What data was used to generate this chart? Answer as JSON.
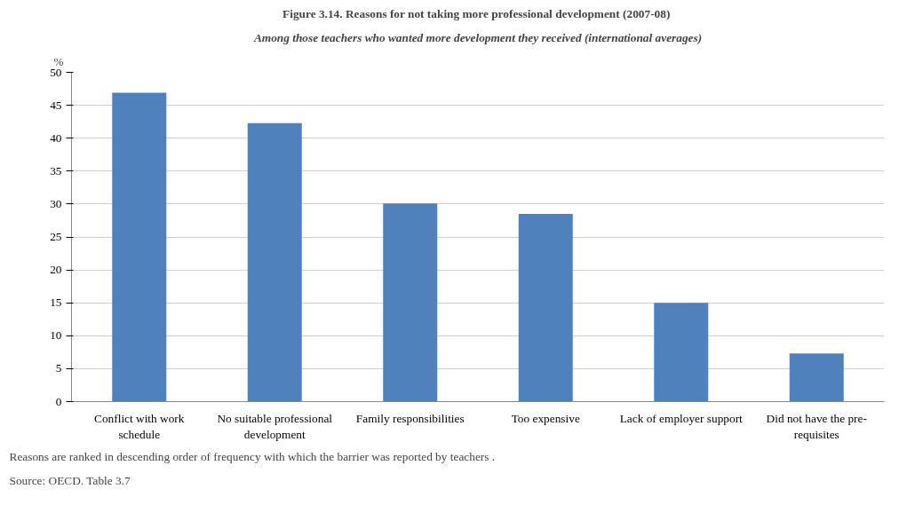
{
  "chart_data": {
    "type": "bar",
    "title": "Figure 3.14. Reasons for not taking more professional development  (2007-08)",
    "subtitle": "Among those teachers who wanted more development they received (international averages)",
    "ylabel": "%",
    "categories": [
      "Conflict with work schedule",
      "No suitable professional development",
      "Family responsibilities",
      "Too expensive",
      "Lack of employer support",
      "Did not have the pre-requisites"
    ],
    "values": [
      46.9,
      42.3,
      30.1,
      28.5,
      15.0,
      7.3
    ],
    "color": "#4f81bd",
    "ylim": [
      0,
      50
    ],
    "yticks": [
      0,
      5,
      10,
      15,
      20,
      25,
      30,
      35,
      40,
      45,
      50
    ],
    "grid": "y",
    "annotations": [
      "Reasons are ranked in descending order of frequency with which  the barrier was reported by teachers .",
      "Source: OECD. Table 3.7"
    ]
  }
}
